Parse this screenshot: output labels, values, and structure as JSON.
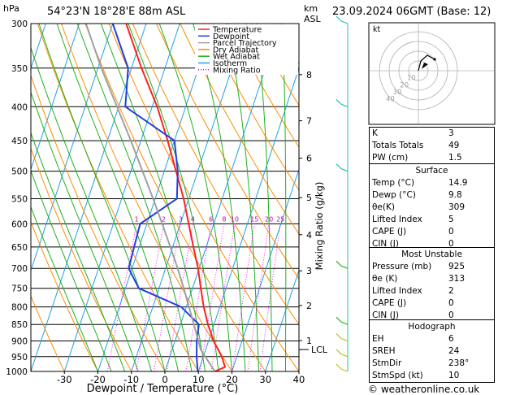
{
  "header": {
    "hpa_label": "hPa",
    "location": "54°23'N  18°28'E  88m  ASL",
    "km_label": "km",
    "asl_label": "ASL",
    "datetime": "23.09.2024  06GMT  (Base: 12)"
  },
  "legend": [
    {
      "label": "Temperature",
      "color": "#ff2020",
      "style": "solid"
    },
    {
      "label": "Dewpoint",
      "color": "#2040e0",
      "style": "solid"
    },
    {
      "label": "Parcel Trajectory",
      "color": "#a0a0a0",
      "style": "solid"
    },
    {
      "label": "Dry Adiabat",
      "color": "#ff8c00",
      "style": "solid"
    },
    {
      "label": "Wet Adiabat",
      "color": "#20b020",
      "style": "solid"
    },
    {
      "label": "Isotherm",
      "color": "#20a0e0",
      "style": "solid"
    },
    {
      "label": "Mixing Ratio",
      "color": "#ff00ff",
      "style": "dotted"
    }
  ],
  "chart_data": {
    "type": "skew-t log-p",
    "xlabel": "Dewpoint / Temperature (°C)",
    "ylabel": "hPa",
    "y2label": "km ASL",
    "mixing_ratio_label": "Mixing Ratio (g/kg)",
    "pressure_levels": [
      300,
      350,
      400,
      450,
      500,
      550,
      600,
      650,
      700,
      750,
      800,
      850,
      900,
      950,
      1000
    ],
    "temperature_ticks": [
      -30,
      -20,
      -10,
      0,
      10,
      20,
      30,
      40
    ],
    "xlim": [
      -40,
      40
    ],
    "ylim": [
      1000,
      300
    ],
    "km_ticks": [
      {
        "label": "8",
        "p": 358
      },
      {
        "label": "7",
        "p": 420
      },
      {
        "label": "6",
        "p": 478
      },
      {
        "label": "5",
        "p": 548
      },
      {
        "label": "4",
        "p": 623
      },
      {
        "label": "3",
        "p": 706
      },
      {
        "label": "2",
        "p": 796
      },
      {
        "label": "1",
        "p": 899
      },
      {
        "label": "LCL",
        "p": 927
      }
    ],
    "mixing_ratio_values": [
      "1",
      "2",
      "3",
      "4",
      "6",
      "8",
      "10",
      "15",
      "20",
      "25"
    ],
    "series": [
      {
        "name": "Temperature",
        "color": "#ff2020",
        "points": [
          [
            1000,
            14.9
          ],
          [
            985,
            17.5
          ],
          [
            950,
            15.5
          ],
          [
            900,
            11.5
          ],
          [
            850,
            8.2
          ],
          [
            800,
            5.2
          ],
          [
            750,
            2.5
          ],
          [
            700,
            -0.3
          ],
          [
            650,
            -3.8
          ],
          [
            600,
            -7.5
          ],
          [
            550,
            -11.5
          ],
          [
            500,
            -16.5
          ],
          [
            450,
            -22
          ],
          [
            400,
            -28.5
          ],
          [
            350,
            -37
          ],
          [
            300,
            -46
          ]
        ]
      },
      {
        "name": "Dewpoint",
        "color": "#2040e0",
        "points": [
          [
            1000,
            9.8
          ],
          [
            950,
            8.0
          ],
          [
            900,
            6.5
          ],
          [
            850,
            5.5
          ],
          [
            800,
            -1.5
          ],
          [
            750,
            -16
          ],
          [
            700,
            -21
          ],
          [
            650,
            -21.5
          ],
          [
            600,
            -22
          ],
          [
            550,
            -13.5
          ],
          [
            500,
            -16
          ],
          [
            450,
            -20
          ],
          [
            400,
            -38
          ],
          [
            350,
            -41
          ],
          [
            300,
            -50
          ]
        ]
      },
      {
        "name": "Parcel Trajectory",
        "color": "#a0a0a0",
        "points": [
          [
            1000,
            14.9
          ],
          [
            927,
            8.5
          ],
          [
            900,
            7.0
          ],
          [
            850,
            4.0
          ],
          [
            800,
            0.8
          ],
          [
            750,
            -2.6
          ],
          [
            700,
            -6.4
          ],
          [
            650,
            -10.7
          ],
          [
            600,
            -15.4
          ],
          [
            550,
            -20.6
          ],
          [
            500,
            -26.5
          ],
          [
            450,
            -33
          ],
          [
            400,
            -40.5
          ],
          [
            350,
            -49
          ],
          [
            300,
            -58
          ]
        ]
      }
    ],
    "wind_barbs": [
      {
        "p": 300
      },
      {
        "p": 400
      },
      {
        "p": 500
      },
      {
        "p": 700
      },
      {
        "p": 850
      },
      {
        "p": 900
      },
      {
        "p": 950
      },
      {
        "p": 1000
      }
    ]
  },
  "hodograph": {
    "label": "kt",
    "ring_labels": [
      "10",
      "20",
      "30",
      "40"
    ]
  },
  "indices": [
    {
      "key": "K",
      "value": "3"
    },
    {
      "key": "Totals Totals",
      "value": "49"
    },
    {
      "key": "PW (cm)",
      "value": "1.5"
    }
  ],
  "surface": {
    "title": "Surface",
    "rows": [
      {
        "key": "Temp (°C)",
        "value": "14.9"
      },
      {
        "key": "Dewp (°C)",
        "value": "9.8"
      },
      {
        "key": "θe(K)",
        "value": "309"
      },
      {
        "key": "Lifted Index",
        "value": "5"
      },
      {
        "key": "CAPE (J)",
        "value": "0"
      },
      {
        "key": "CIN (J)",
        "value": "0"
      }
    ]
  },
  "most_unstable": {
    "title": "Most Unstable",
    "rows": [
      {
        "key": "Pressure (mb)",
        "value": "925"
      },
      {
        "key": "θe (K)",
        "value": "313"
      },
      {
        "key": "Lifted Index",
        "value": "2"
      },
      {
        "key": "CAPE (J)",
        "value": "0"
      },
      {
        "key": "CIN (J)",
        "value": "0"
      }
    ]
  },
  "hodograph_table": {
    "title": "Hodograph",
    "rows": [
      {
        "key": "EH",
        "value": "6"
      },
      {
        "key": "SREH",
        "value": "24"
      },
      {
        "key": "StmDir",
        "value": "238°"
      },
      {
        "key": "StmSpd (kt)",
        "value": "10"
      }
    ]
  },
  "copyright": "© weatheronline.co.uk"
}
